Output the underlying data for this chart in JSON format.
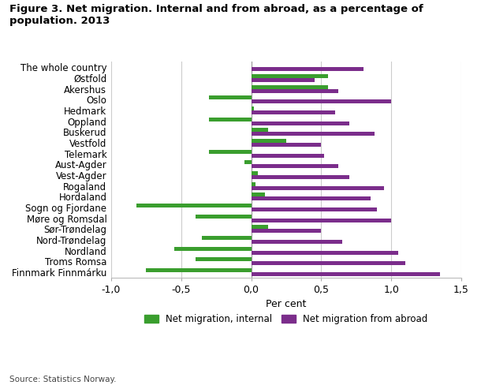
{
  "title": "Figure 3. Net migration. Internal and from abroad, as a percentage of\npopulation. 2013",
  "regions": [
    "The whole country",
    "Østfold",
    "Akershus",
    "Oslo",
    "Hedmark",
    "Oppland",
    "Buskerud",
    "Vestfold",
    "Telemark",
    "Aust-Agder",
    "Vest-Agder",
    "Rogaland",
    "Hordaland",
    "Sogn og Fjordane",
    "Møre og Romsdal",
    "Sør-Trøndelag",
    "Nord-Trøndelag",
    "Nordland",
    "Troms Romsa",
    "Finnmark Finnmárku"
  ],
  "internal": [
    0.0,
    0.55,
    0.55,
    -0.3,
    0.02,
    -0.3,
    0.12,
    0.25,
    -0.3,
    -0.05,
    0.05,
    0.03,
    0.1,
    -0.82,
    -0.4,
    0.12,
    -0.35,
    -0.55,
    -0.4,
    -0.75
  ],
  "from_abroad": [
    0.8,
    0.45,
    0.62,
    1.0,
    0.6,
    0.7,
    0.88,
    0.5,
    0.52,
    0.62,
    0.7,
    0.95,
    0.85,
    0.9,
    1.0,
    0.5,
    0.65,
    1.05,
    1.1,
    1.35
  ],
  "color_internal": "#3a9e2e",
  "color_abroad": "#7b2d8b",
  "xlabel": "Per cent",
  "xlim": [
    -1.0,
    1.5
  ],
  "xticks": [
    -1.0,
    -0.5,
    0.0,
    0.5,
    1.0,
    1.5
  ],
  "xtick_labels": [
    "-1,0",
    "-0,5",
    "0,0",
    "0,5",
    "1,0",
    "1,5"
  ],
  "legend_internal": "Net migration, internal",
  "legend_abroad": "Net migration from abroad",
  "source": "Source: Statistics Norway.",
  "bg_color": "#ffffff",
  "grid_color": "#cccccc",
  "bar_height": 0.36
}
